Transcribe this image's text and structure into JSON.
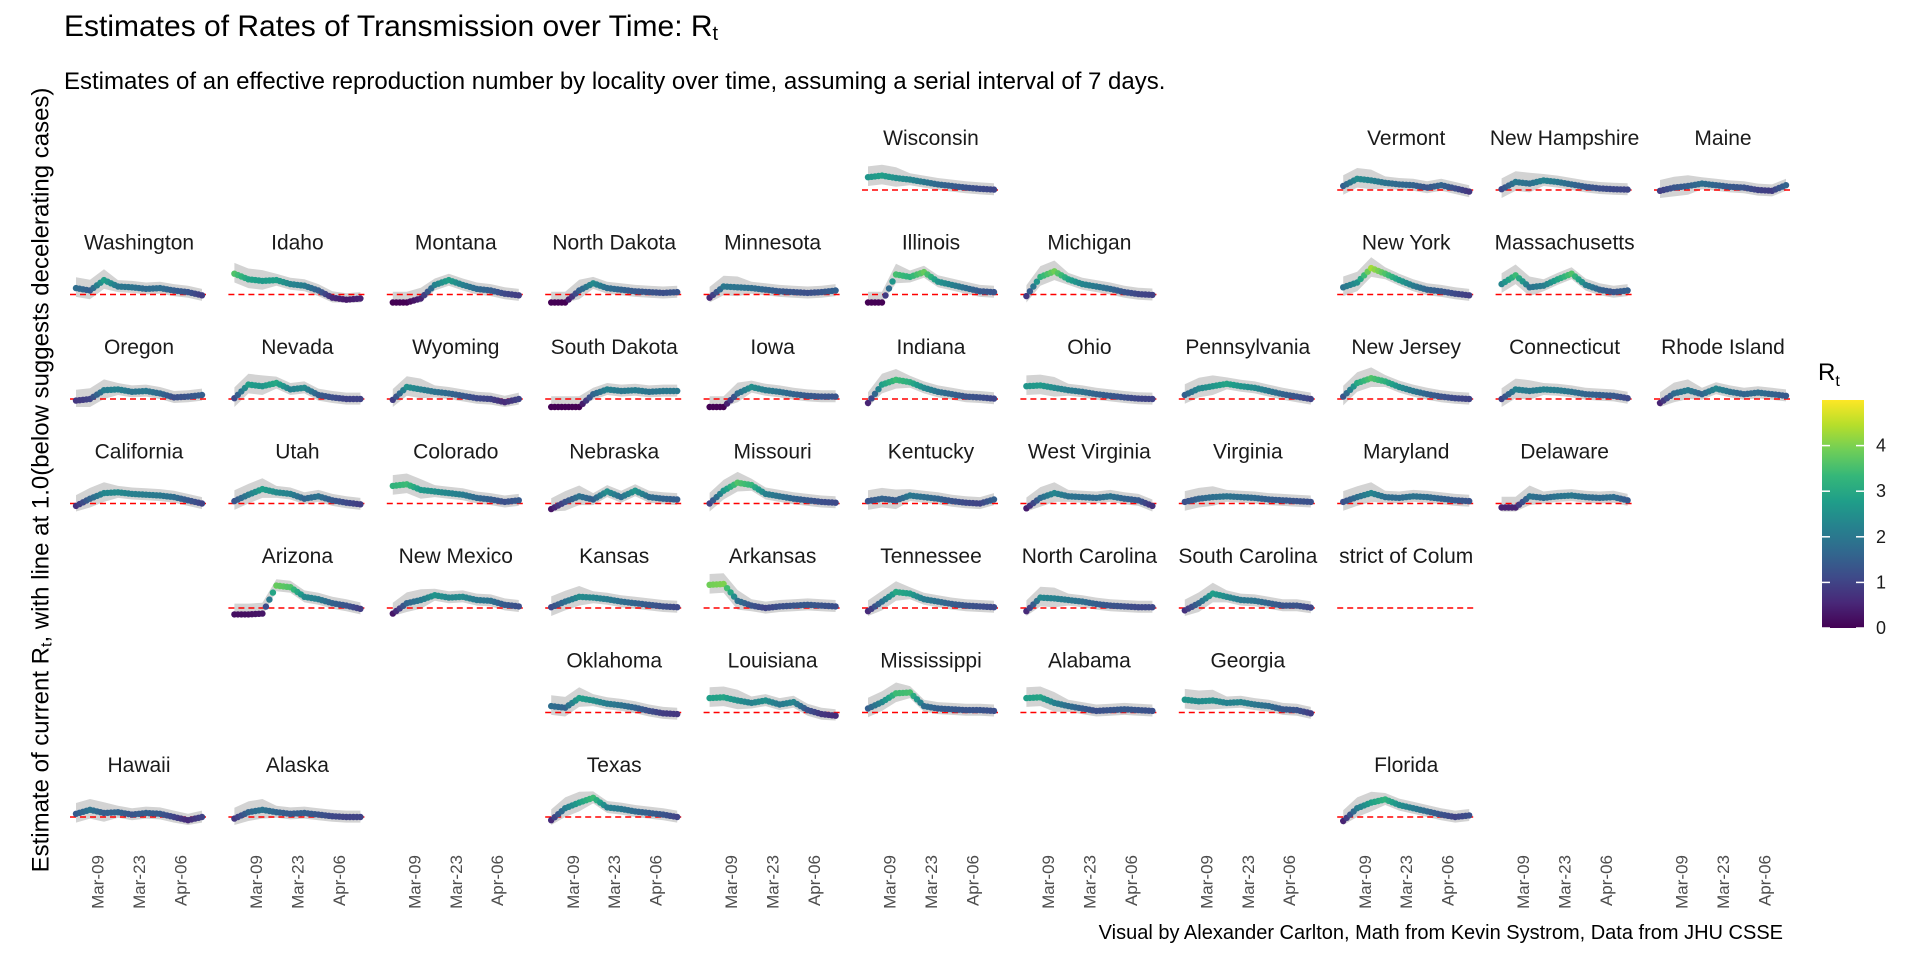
{
  "title": "Estimates of Rates of Transmission over Time: R",
  "title_sub": "t",
  "subtitle": "Estimates of an effective reproduction number by locality over time, assuming a serial interval of 7 days.",
  "ylabel_prefix": "Estimate of current R",
  "ylabel_sub": "t",
  "ylabel_suffix": ", with line at 1.0(below suggests decelerating cases)",
  "caption": "Visual by Alexander Carlton, Math from Kevin Systrom, Data from JHU CSSE",
  "chart_data": {
    "type": "scatter",
    "facet_layout": "geographic grid, 11 columns x 7 rows",
    "x_ticks": [
      "Mar-09",
      "Mar-23",
      "Apr-06"
    ],
    "x_range": [
      "2020-03-01",
      "2020-04-14"
    ],
    "reference_line": 1.0,
    "color_scale": {
      "title": "R",
      "title_sub": "t",
      "palette": [
        "#440154",
        "#482878",
        "#3e4a89",
        "#31688e",
        "#26828e",
        "#1f9e89",
        "#35b779",
        "#6ece58",
        "#b5de2b",
        "#fde725"
      ],
      "range": [
        0,
        5
      ],
      "ticks": [
        0,
        1,
        2,
        3,
        4
      ]
    },
    "point_color": "viridis by R value",
    "band_color": "#d3d3d3",
    "reference_line_color": "#ff0000",
    "facets": [
      {
        "state": "Wisconsin",
        "col": 5,
        "row": 0,
        "values": [
          2.6,
          2.8,
          2.5,
          2.3,
          2.0,
          1.7,
          1.5,
          1.3,
          1.15,
          1.05
        ]
      },
      {
        "state": "Vermont",
        "col": 8,
        "row": 0,
        "values": [
          1.5,
          2.4,
          2.2,
          1.9,
          1.7,
          1.6,
          1.3,
          1.6,
          1.2,
          0.8
        ]
      },
      {
        "state": "New Hampshire",
        "col": 9,
        "row": 0,
        "values": [
          1.1,
          2.0,
          1.8,
          2.2,
          2.0,
          1.7,
          1.4,
          1.2,
          1.1,
          1.05
        ]
      },
      {
        "state": "Maine",
        "col": 10,
        "row": 0,
        "values": [
          0.9,
          1.3,
          1.5,
          1.8,
          1.6,
          1.4,
          1.3,
          1.0,
          0.9,
          1.6
        ]
      },
      {
        "state": "Washington",
        "col": 0,
        "row": 1,
        "values": [
          1.8,
          1.5,
          2.8,
          2.0,
          1.9,
          1.7,
          1.8,
          1.5,
          1.3,
          0.9
        ]
      },
      {
        "state": "Idaho",
        "col": 1,
        "row": 1,
        "values": [
          3.6,
          2.9,
          2.7,
          2.8,
          2.3,
          2.1,
          1.5,
          0.6,
          0.35,
          0.5
        ]
      },
      {
        "state": "Montana",
        "col": 2,
        "row": 1,
        "values": [
          0.0,
          0.0,
          0.5,
          2.2,
          2.8,
          2.2,
          1.7,
          1.5,
          1.1,
          0.9
        ]
      },
      {
        "state": "North Dakota",
        "col": 3,
        "row": 1,
        "values": [
          0.0,
          0.0,
          1.5,
          2.4,
          1.8,
          1.6,
          1.4,
          1.3,
          1.2,
          1.3
        ]
      },
      {
        "state": "Minnesota",
        "col": 4,
        "row": 1,
        "values": [
          0.6,
          2.0,
          1.9,
          1.8,
          1.6,
          1.4,
          1.3,
          1.2,
          1.3,
          1.5
        ]
      },
      {
        "state": "Illinois",
        "col": 5,
        "row": 1,
        "values": [
          0.0,
          0.0,
          3.5,
          3.2,
          3.8,
          2.6,
          2.2,
          1.8,
          1.4,
          1.3
        ]
      },
      {
        "state": "Michigan",
        "col": 6,
        "row": 1,
        "values": [
          0.8,
          3.2,
          3.9,
          2.9,
          2.3,
          2.0,
          1.7,
          1.3,
          1.05,
          0.95
        ]
      },
      {
        "state": "New York",
        "col": 8,
        "row": 1,
        "values": [
          1.9,
          2.5,
          4.3,
          3.6,
          2.8,
          2.1,
          1.6,
          1.4,
          1.1,
          0.9
        ]
      },
      {
        "state": "Massachusetts",
        "col": 9,
        "row": 1,
        "values": [
          2.3,
          3.4,
          1.9,
          2.1,
          2.9,
          3.6,
          2.2,
          1.6,
          1.3,
          1.5
        ]
      },
      {
        "state": "Oregon",
        "col": 0,
        "row": 2,
        "values": [
          0.8,
          1.0,
          2.1,
          2.2,
          1.9,
          2.0,
          1.7,
          1.2,
          1.3,
          1.5
        ]
      },
      {
        "state": "Nevada",
        "col": 1,
        "row": 2,
        "values": [
          1.1,
          2.8,
          2.6,
          3.0,
          2.2,
          2.4,
          1.5,
          1.2,
          1.0,
          1.0
        ]
      },
      {
        "state": "Wyoming",
        "col": 2,
        "row": 2,
        "values": [
          0.9,
          2.5,
          2.2,
          1.9,
          1.7,
          1.4,
          1.1,
          1.0,
          0.6,
          1.0
        ]
      },
      {
        "state": "South Dakota",
        "col": 3,
        "row": 2,
        "values": [
          0.0,
          0.0,
          0.0,
          1.6,
          2.2,
          2.0,
          2.1,
          1.9,
          2.0,
          2.0
        ]
      },
      {
        "state": "Iowa",
        "col": 4,
        "row": 2,
        "values": [
          0.0,
          0.0,
          1.7,
          2.5,
          2.1,
          1.9,
          1.6,
          1.4,
          1.3,
          1.3
        ]
      },
      {
        "state": "Indiana",
        "col": 5,
        "row": 2,
        "values": [
          0.5,
          2.8,
          3.4,
          3.1,
          2.4,
          1.9,
          1.6,
          1.3,
          1.2,
          1.05
        ]
      },
      {
        "state": "Ohio",
        "col": 6,
        "row": 2,
        "values": [
          2.6,
          2.7,
          2.4,
          2.1,
          1.9,
          1.6,
          1.4,
          1.2,
          1.05,
          1.0
        ]
      },
      {
        "state": "Pennsylvania",
        "col": 7,
        "row": 2,
        "values": [
          1.5,
          2.3,
          2.6,
          2.9,
          2.6,
          2.4,
          2.0,
          1.6,
          1.3,
          1.0
        ]
      },
      {
        "state": "New Jersey",
        "col": 8,
        "row": 2,
        "values": [
          1.3,
          3.0,
          3.6,
          3.2,
          2.5,
          2.0,
          1.6,
          1.3,
          1.1,
          1.0
        ]
      },
      {
        "state": "Connecticut",
        "col": 9,
        "row": 2,
        "values": [
          1.0,
          2.2,
          2.0,
          2.2,
          2.1,
          1.9,
          1.6,
          1.5,
          1.4,
          1.1
        ]
      },
      {
        "state": "Rhode Island",
        "col": 10,
        "row": 2,
        "values": [
          0.5,
          1.7,
          2.1,
          1.6,
          2.3,
          1.9,
          1.6,
          1.8,
          1.6,
          1.4
        ]
      },
      {
        "state": "California",
        "col": 0,
        "row": 3,
        "values": [
          0.7,
          1.6,
          2.3,
          2.4,
          2.2,
          2.1,
          2.0,
          1.8,
          1.4,
          1.0
        ]
      },
      {
        "state": "Utah",
        "col": 1,
        "row": 3,
        "values": [
          1.3,
          2.1,
          2.8,
          2.4,
          2.2,
          1.6,
          1.9,
          1.4,
          1.1,
          0.9
        ]
      },
      {
        "state": "Colorado",
        "col": 2,
        "row": 3,
        "values": [
          3.2,
          3.4,
          2.7,
          2.5,
          2.3,
          2.1,
          1.7,
          1.5,
          1.2,
          1.4
        ]
      },
      {
        "state": "Nebraska",
        "col": 3,
        "row": 3,
        "values": [
          0.3,
          1.2,
          1.9,
          1.5,
          2.5,
          1.8,
          2.6,
          1.8,
          1.6,
          1.5
        ]
      },
      {
        "state": "Missouri",
        "col": 4,
        "row": 3,
        "values": [
          1.0,
          2.6,
          3.6,
          3.3,
          2.2,
          1.9,
          1.6,
          1.4,
          1.2,
          1.1
        ]
      },
      {
        "state": "Kentucky",
        "col": 5,
        "row": 3,
        "values": [
          1.3,
          1.6,
          1.4,
          2.0,
          1.8,
          1.6,
          1.3,
          1.1,
          1.0,
          1.5
        ]
      },
      {
        "state": "West Virginia",
        "col": 6,
        "row": 3,
        "values": [
          0.4,
          1.7,
          2.3,
          1.9,
          1.8,
          1.7,
          1.9,
          1.6,
          1.4,
          0.7
        ]
      },
      {
        "state": "Virginia",
        "col": 7,
        "row": 3,
        "values": [
          1.2,
          1.6,
          1.8,
          1.9,
          1.8,
          1.7,
          1.5,
          1.4,
          1.3,
          1.2
        ]
      },
      {
        "state": "Maryland",
        "col": 8,
        "row": 3,
        "values": [
          1.2,
          1.8,
          2.3,
          1.8,
          1.7,
          1.9,
          1.8,
          1.6,
          1.4,
          1.3
        ]
      },
      {
        "state": "Delaware",
        "col": 9,
        "row": 3,
        "values": [
          0.5,
          0.5,
          1.9,
          1.7,
          1.9,
          2.0,
          1.8,
          1.7,
          1.8,
          1.4
        ]
      },
      {
        "state": "Arizona",
        "col": 1,
        "row": 4,
        "values": [
          0.2,
          0.2,
          0.3,
          3.8,
          3.6,
          2.4,
          2.1,
          1.6,
          1.3,
          0.9
        ]
      },
      {
        "state": "New Mexico",
        "col": 2,
        "row": 4,
        "values": [
          0.3,
          1.6,
          2.0,
          2.6,
          2.3,
          2.4,
          2.0,
          1.9,
          1.4,
          1.2
        ]
      },
      {
        "state": "Kansas",
        "col": 3,
        "row": 4,
        "values": [
          1.1,
          1.8,
          2.4,
          2.3,
          2.1,
          1.8,
          1.6,
          1.4,
          1.2,
          1.1
        ]
      },
      {
        "state": "Arkansas",
        "col": 4,
        "row": 4,
        "values": [
          3.9,
          4.0,
          1.9,
          1.3,
          1.0,
          1.2,
          1.3,
          1.4,
          1.3,
          1.2
        ]
      },
      {
        "state": "Tennessee",
        "col": 5,
        "row": 4,
        "values": [
          0.6,
          1.8,
          3.0,
          2.8,
          2.1,
          1.8,
          1.5,
          1.3,
          1.2,
          1.1
        ]
      },
      {
        "state": "North Carolina",
        "col": 6,
        "row": 4,
        "values": [
          0.6,
          2.3,
          2.2,
          2.0,
          1.8,
          1.5,
          1.3,
          1.2,
          1.1,
          1.1
        ]
      },
      {
        "state": "South Carolina",
        "col": 7,
        "row": 4,
        "values": [
          0.7,
          1.6,
          2.8,
          2.4,
          2.0,
          1.9,
          1.6,
          1.3,
          1.3,
          1.05
        ]
      },
      {
        "state": "District of Columbia",
        "col": 8,
        "row": 4,
        "values": []
      },
      {
        "state": "Oklahoma",
        "col": 3,
        "row": 5,
        "values": [
          1.8,
          1.6,
          2.8,
          2.5,
          2.1,
          1.9,
          1.6,
          1.2,
          0.9,
          0.8
        ]
      },
      {
        "state": "Louisiana",
        "col": 4,
        "row": 5,
        "values": [
          2.8,
          2.9,
          2.5,
          2.2,
          2.5,
          2.0,
          2.3,
          1.3,
          0.8,
          0.6
        ]
      },
      {
        "state": "Mississippi",
        "col": 5,
        "row": 5,
        "values": [
          1.5,
          2.3,
          3.4,
          3.5,
          1.8,
          1.5,
          1.4,
          1.3,
          1.3,
          1.2
        ]
      },
      {
        "state": "Alabama",
        "col": 6,
        "row": 5,
        "values": [
          2.8,
          2.9,
          2.2,
          1.8,
          1.5,
          1.2,
          1.3,
          1.4,
          1.3,
          1.2
        ]
      },
      {
        "state": "Georgia",
        "col": 7,
        "row": 5,
        "values": [
          2.6,
          2.4,
          2.5,
          2.2,
          2.3,
          2.0,
          1.8,
          1.4,
          1.3,
          0.9
        ]
      },
      {
        "state": "Hawaii",
        "col": 0,
        "row": 6,
        "values": [
          1.4,
          1.9,
          1.5,
          1.6,
          1.3,
          1.5,
          1.4,
          1.0,
          0.6,
          1.0
        ]
      },
      {
        "state": "Alaska",
        "col": 1,
        "row": 6,
        "values": [
          0.8,
          1.6,
          1.9,
          1.6,
          1.4,
          1.5,
          1.3,
          1.1,
          1.0,
          1.0
        ]
      },
      {
        "state": "Texas",
        "col": 3,
        "row": 6,
        "values": [
          0.6,
          2.1,
          2.8,
          3.4,
          2.2,
          2.0,
          1.7,
          1.5,
          1.3,
          1.0
        ]
      },
      {
        "state": "Florida",
        "col": 8,
        "row": 6,
        "values": [
          0.5,
          2.1,
          2.8,
          3.2,
          2.5,
          2.1,
          1.7,
          1.3,
          1.0,
          1.2
        ]
      }
    ]
  }
}
